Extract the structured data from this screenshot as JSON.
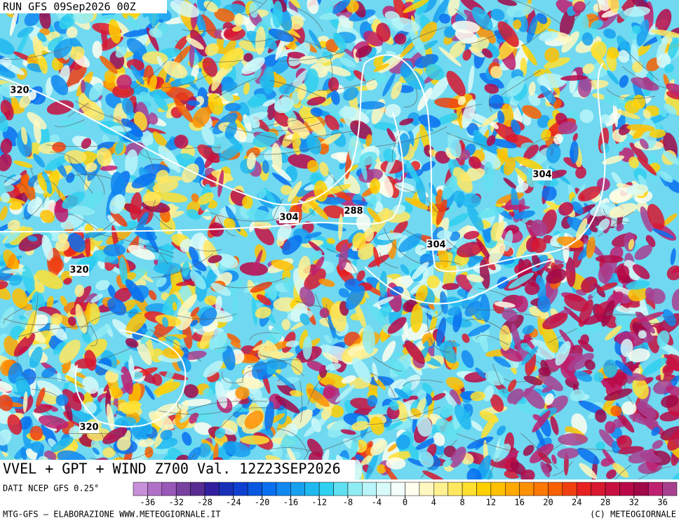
{
  "header": {
    "run": "RUN GFS 09Sep2026 00Z"
  },
  "contour_labels": [
    "320",
    "304",
    "288",
    "304",
    "304",
    "320",
    "320"
  ],
  "map_title": "VVEL + GPT + WIND Z700 Val. 12Z23SEP2026",
  "source": "DATI NCEP GFS 0.25°",
  "colorbar": {
    "range": [
      -38,
      38
    ],
    "ticks": [
      -36,
      -32,
      -28,
      -24,
      -20,
      -16,
      -12,
      -8,
      -4,
      0,
      4,
      8,
      12,
      16,
      20,
      24,
      28,
      32,
      36
    ],
    "colors": [
      "#c890d8",
      "#b070c8",
      "#9858b8",
      "#7840a0",
      "#582c90",
      "#3020a0",
      "#1830b8",
      "#1040d0",
      "#0858e0",
      "#0870f0",
      "#1088f0",
      "#18a0f0",
      "#20b8f0",
      "#30d0f0",
      "#60e0f0",
      "#90ecf4",
      "#b8f4f8",
      "#d8faf8",
      "#f4fffc",
      "#fffff0",
      "#fff8c0",
      "#fff090",
      "#ffe860",
      "#ffe030",
      "#ffd000",
      "#ffc000",
      "#ffa800",
      "#ff9000",
      "#ff7800",
      "#f86000",
      "#f04010",
      "#e82020",
      "#d81830",
      "#c81040",
      "#b80848",
      "#a00848",
      "#c02070",
      "#a84090"
    ]
  },
  "footer": {
    "left": "MTG-GFS – ELABORAZIONE WWW.METEOGIORNALE.IT",
    "right": "(C) METEOGIORNALE"
  }
}
